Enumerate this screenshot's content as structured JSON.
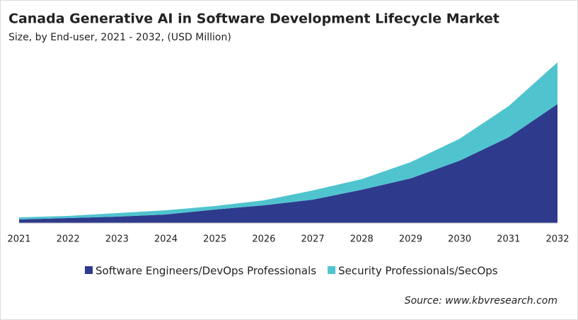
{
  "chart_data": {
    "type": "stacked-area",
    "title": "Canada Generative AI in Software Development Lifecycle Market",
    "subtitle": "Size, by End-user, 2021 - 2032, (USD Million)",
    "categories": [
      "2021",
      "2022",
      "2023",
      "2024",
      "2025",
      "2026",
      "2027",
      "2028",
      "2029",
      "2030",
      "2031",
      "2032"
    ],
    "series": [
      {
        "name": "Software Engineers/DevOps Professionals",
        "color": "#2e3a8c",
        "values": [
          5,
          7,
          9,
          12,
          19,
          25,
          33,
          47,
          63,
          88,
          121,
          168
        ]
      },
      {
        "name": "Security Professionals/SecOps",
        "color": "#4fc4cf",
        "values": [
          3,
          3,
          5,
          6,
          5,
          7,
          13,
          15,
          23,
          31,
          44,
          59
        ]
      }
    ],
    "ylim": [
      0,
      230
    ],
    "source": "Source: www.kbvresearch.com"
  }
}
